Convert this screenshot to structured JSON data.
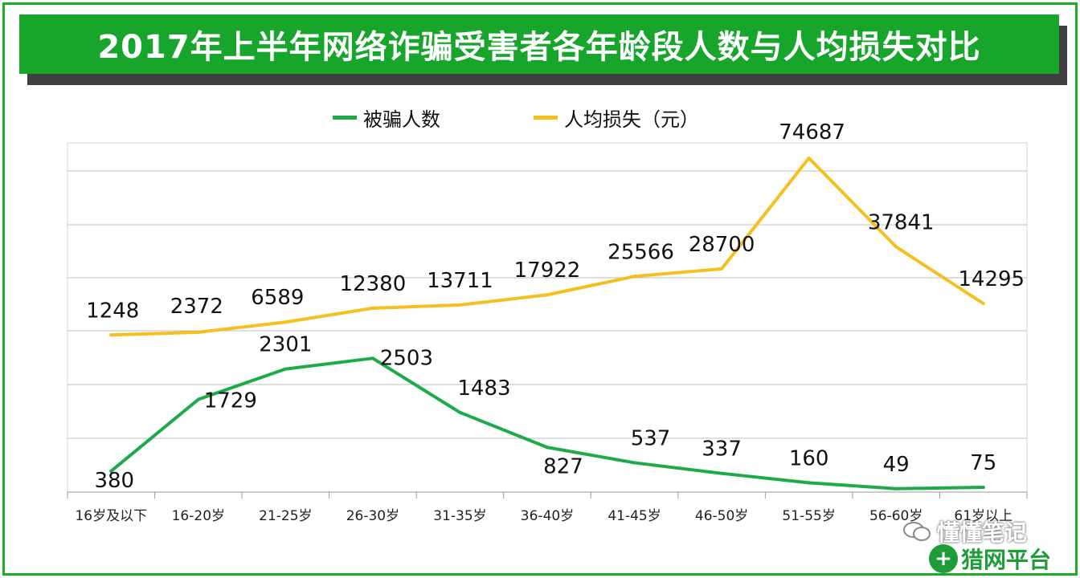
{
  "title": "2017年上半年网络诈骗受害者各年龄段人数与人均损失对比",
  "colors": {
    "green": "#1faa4a",
    "gold": "#f5bf1f",
    "title_bg": "#17a52b"
  },
  "chart_data": {
    "type": "line",
    "categories": [
      "16岁及以下",
      "16-20岁",
      "21-25岁",
      "26-30岁",
      "31-35岁",
      "36-40岁",
      "41-45岁",
      "46-50岁",
      "51-55岁",
      "56-60岁",
      "61岁以上"
    ],
    "series": [
      {
        "name": "被骗人数",
        "color": "#1faa4a",
        "axis": "secondary",
        "values": [
          380,
          1729,
          2301,
          2503,
          1483,
          827,
          537,
          337,
          160,
          49,
          75
        ]
      },
      {
        "name": "人均损失（元）",
        "color": "#f5bf1f",
        "axis": "primary",
        "values": [
          1248,
          2372,
          6589,
          12380,
          13711,
          17922,
          25566,
          28700,
          74687,
          37841,
          14295
        ]
      }
    ],
    "grid": true,
    "legend": "top-center",
    "y_axis_labels_shown": false
  },
  "watermark": {
    "account": "懂懂笔记",
    "brand": "猎网平台",
    "seal": "+"
  }
}
